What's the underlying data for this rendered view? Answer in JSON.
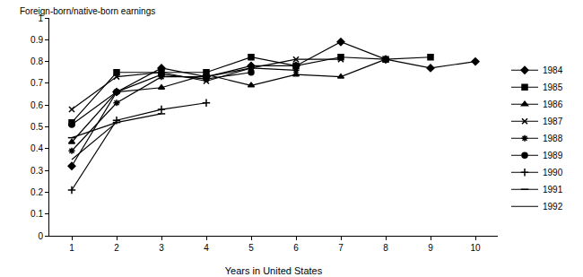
{
  "chart_data": {
    "type": "line",
    "y_label": "Foreign-born/native-born earnings",
    "x_label": "Years in United States",
    "x": [
      1,
      2,
      3,
      4,
      5,
      6,
      7,
      8,
      9,
      10
    ],
    "xlim": [
      0.5,
      10.5
    ],
    "xticks": [
      1,
      2,
      3,
      4,
      5,
      6,
      7,
      8,
      9,
      10
    ],
    "ylim": [
      0,
      1
    ],
    "yticks": [
      0,
      0.1,
      0.2,
      0.3,
      0.4,
      0.5,
      0.6,
      0.7,
      0.8,
      0.9,
      1
    ],
    "grid": false,
    "legend": "right",
    "series": [
      {
        "name": "1984",
        "color": "#000000",
        "marker": "diamond",
        "values": [
          0.32,
          0.66,
          0.77,
          0.73,
          0.78,
          0.78,
          0.89,
          0.81,
          0.77,
          0.8
        ]
      },
      {
        "name": "1985",
        "color": "#000000",
        "marker": "square",
        "values": [
          0.52,
          0.75,
          0.75,
          0.75,
          0.82,
          0.78,
          0.82,
          0.81,
          0.82,
          null
        ]
      },
      {
        "name": "1986",
        "color": "#000000",
        "marker": "triangle",
        "values": [
          0.43,
          0.66,
          0.68,
          0.74,
          0.69,
          0.74,
          0.73,
          0.81,
          null,
          null
        ]
      },
      {
        "name": "1987",
        "color": "#000000",
        "marker": "x",
        "values": [
          0.58,
          0.73,
          0.75,
          0.71,
          0.77,
          0.81,
          0.81,
          null,
          null,
          null
        ]
      },
      {
        "name": "1988",
        "color": "#000000",
        "marker": "asterisk",
        "values": [
          0.39,
          0.61,
          0.73,
          0.73,
          0.77,
          0.76,
          null,
          null,
          null,
          null
        ]
      },
      {
        "name": "1989",
        "color": "#000000",
        "marker": "circle",
        "values": [
          0.51,
          0.66,
          0.74,
          0.72,
          0.75,
          null,
          null,
          null,
          null,
          null
        ]
      },
      {
        "name": "1990",
        "color": "#000000",
        "marker": "plus",
        "values": [
          0.21,
          0.53,
          0.58,
          0.61,
          null,
          null,
          null,
          null,
          null,
          null
        ]
      },
      {
        "name": "1991",
        "color": "#000000",
        "marker": "dash",
        "values": [
          0.45,
          0.52,
          0.56,
          null,
          null,
          null,
          null,
          null,
          null,
          null
        ]
      },
      {
        "name": "1992",
        "color": "#000000",
        "marker": "none",
        "values": [
          0.35,
          0.52,
          null,
          null,
          null,
          null,
          null,
          null,
          null,
          null
        ]
      }
    ]
  }
}
